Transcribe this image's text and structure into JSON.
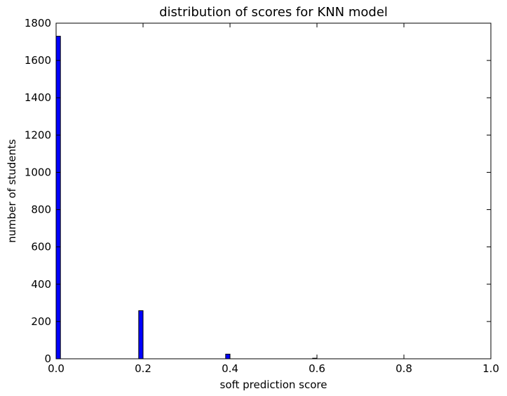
{
  "chart_data": {
    "type": "bar",
    "title": "distribution of scores for KNN model",
    "xlabel": "soft prediction score",
    "ylabel": "number of students",
    "xlim": [
      0.0,
      1.0
    ],
    "ylim": [
      0,
      1800
    ],
    "xticks": [
      "0.0",
      "0.2",
      "0.4",
      "0.6",
      "0.8",
      "1.0"
    ],
    "yticks": [
      "0",
      "200",
      "400",
      "600",
      "800",
      "1000",
      "1200",
      "1400",
      "1600",
      "1800"
    ],
    "grid": false,
    "bar_color": "#0000ff",
    "bars": [
      {
        "x_start": 0.0,
        "x_end": 0.01,
        "value": 1730
      },
      {
        "x_start": 0.19,
        "x_end": 0.2,
        "value": 258
      },
      {
        "x_start": 0.39,
        "x_end": 0.4,
        "value": 25
      },
      {
        "x_start": 0.59,
        "x_end": 0.6,
        "value": 3
      }
    ]
  }
}
